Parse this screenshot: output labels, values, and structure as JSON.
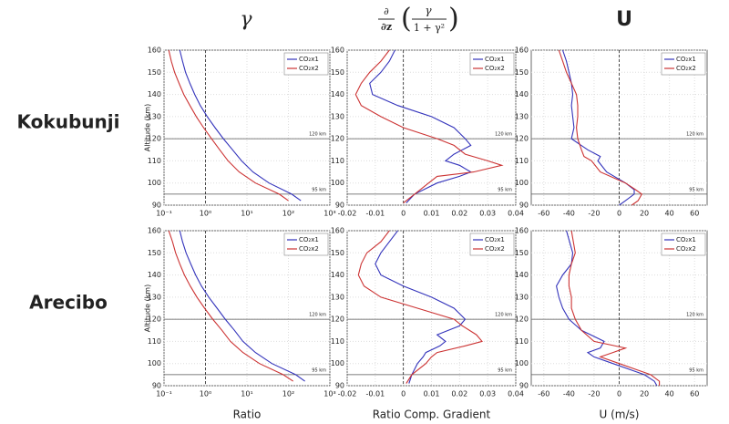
{
  "column_titles": {
    "gamma": "γ",
    "gradient": {
      "d_numerator": "∂",
      "d_denominator": "∂z",
      "numerator": "γ",
      "denominator": "1 + γ²"
    },
    "wind": "U"
  },
  "row_labels": [
    "Kokubunji",
    "Arecibo"
  ],
  "chart_data": [
    {
      "type": "line",
      "ylabel": "Altitude (km)",
      "xscale": "log",
      "xlim": [
        0.1,
        1000
      ],
      "xticks": [
        {
          "value": 0.1,
          "label": "10⁻¹"
        },
        {
          "value": 1,
          "label": "10⁰"
        },
        {
          "value": 10,
          "label": "10¹"
        },
        {
          "value": 100,
          "label": "10²"
        },
        {
          "value": 1000,
          "label": "10³"
        }
      ],
      "ylim": [
        90,
        160
      ],
      "yticks": [
        90,
        100,
        110,
        120,
        130,
        140,
        150,
        160
      ],
      "grid": true,
      "legend": "upper right",
      "zero_line": 1,
      "reference_lines": [
        {
          "value": 120,
          "label": "120 km"
        },
        {
          "value": 95,
          "label": "95 km"
        }
      ],
      "y": [
        92,
        95,
        100,
        105,
        110,
        115,
        120,
        125,
        130,
        135,
        140,
        145,
        150,
        155,
        160
      ],
      "series": [
        {
          "name": "CO₂x1",
          "color": "#3333bb",
          "values": [
            200,
            120,
            34,
            14,
            7.4,
            4.5,
            2.7,
            1.7,
            1.1,
            0.75,
            0.55,
            0.42,
            0.33,
            0.28,
            0.24
          ]
        },
        {
          "name": "CO₂x2",
          "color": "#cc3333",
          "values": [
            100,
            60,
            16,
            6.5,
            3.5,
            2.2,
            1.4,
            0.9,
            0.6,
            0.42,
            0.3,
            0.23,
            0.18,
            0.15,
            0.13
          ]
        }
      ]
    },
    {
      "type": "line",
      "xlim": [
        -0.02,
        0.04
      ],
      "xticks": [
        -0.02,
        -0.01,
        0,
        0.01,
        0.02,
        0.03,
        0.04
      ],
      "ylim": [
        90,
        160
      ],
      "yticks": [
        90,
        100,
        110,
        120,
        130,
        140,
        150,
        160
      ],
      "grid": true,
      "legend": "upper right",
      "zero_line": 0,
      "reference_lines": [
        {
          "value": 120,
          "label": "120 km"
        },
        {
          "value": 95,
          "label": "95 km"
        }
      ],
      "y": [
        91,
        95,
        100,
        103,
        105,
        108,
        110,
        113,
        117,
        120,
        125,
        130,
        135,
        140,
        145,
        150,
        155,
        160
      ],
      "series": [
        {
          "name": "CO₂x1",
          "color": "#3333bb",
          "values": [
            0.001,
            0.004,
            0.012,
            0.02,
            0.024,
            0.02,
            0.015,
            0.018,
            0.024,
            0.022,
            0.018,
            0.01,
            -0.002,
            -0.011,
            -0.012,
            -0.008,
            -0.005,
            -0.003
          ]
        },
        {
          "name": "CO₂x2",
          "color": "#cc3333",
          "values": [
            0,
            0.004,
            0.009,
            0.012,
            0.025,
            0.035,
            0.03,
            0.022,
            0.018,
            0.012,
            0,
            -0.008,
            -0.015,
            -0.017,
            -0.015,
            -0.012,
            -0.008,
            -0.005
          ]
        }
      ]
    },
    {
      "type": "line",
      "xlim": [
        -70,
        70
      ],
      "xticks": [
        -60,
        -40,
        -20,
        0,
        20,
        40,
        60
      ],
      "ylim": [
        90,
        160
      ],
      "yticks": [
        90,
        100,
        110,
        120,
        130,
        140,
        150,
        160
      ],
      "grid": true,
      "legend": "upper right",
      "zero_line": 0,
      "reference_lines": [
        {
          "value": 120,
          "label": "120 km"
        },
        {
          "value": 95,
          "label": "95 km"
        }
      ],
      "y": [
        90,
        92,
        95,
        97,
        100,
        105,
        110,
        112,
        115,
        120,
        125,
        130,
        135,
        140,
        145,
        150,
        155,
        160
      ],
      "series": [
        {
          "name": "CO₂x1",
          "color": "#3333bb",
          "values": [
            0,
            5,
            12,
            12,
            5,
            -10,
            -17,
            -15,
            -25,
            -38,
            -36,
            -37,
            -38,
            -37,
            -38,
            -40,
            -42,
            -45
          ]
        },
        {
          "name": "CO₂x2",
          "color": "#cc3333",
          "values": [
            10,
            15,
            18,
            13,
            5,
            -15,
            -22,
            -28,
            -30,
            -33,
            -34,
            -33,
            -33,
            -34,
            -38,
            -42,
            -45,
            -48
          ]
        }
      ]
    },
    {
      "type": "line",
      "xlabel": "Ratio",
      "ylabel": "Altitude (km)",
      "xscale": "log",
      "xlim": [
        0.1,
        1000
      ],
      "xticks": [
        {
          "value": 0.1,
          "label": "10⁻¹"
        },
        {
          "value": 1,
          "label": "10⁰"
        },
        {
          "value": 10,
          "label": "10¹"
        },
        {
          "value": 100,
          "label": "10²"
        },
        {
          "value": 1000,
          "label": "10³"
        }
      ],
      "ylim": [
        90,
        160
      ],
      "yticks": [
        90,
        100,
        110,
        120,
        130,
        140,
        150,
        160
      ],
      "grid": true,
      "legend": "upper right",
      "zero_line": 1,
      "reference_lines": [
        {
          "value": 120,
          "label": "120 km"
        },
        {
          "value": 95,
          "label": "95 km"
        }
      ],
      "y": [
        92,
        95,
        100,
        105,
        110,
        115,
        120,
        125,
        130,
        135,
        140,
        145,
        150,
        155,
        160
      ],
      "series": [
        {
          "name": "CO₂x1",
          "color": "#3333bb",
          "values": [
            250,
            150,
            40,
            16,
            8,
            5,
            3,
            1.9,
            1.2,
            0.8,
            0.58,
            0.44,
            0.34,
            0.28,
            0.24
          ]
        },
        {
          "name": "CO₂x2",
          "color": "#cc3333",
          "values": [
            130,
            75,
            20,
            8,
            4,
            2.5,
            1.5,
            0.95,
            0.62,
            0.43,
            0.31,
            0.24,
            0.19,
            0.16,
            0.13
          ]
        }
      ]
    },
    {
      "type": "line",
      "xlabel": "Ratio Comp. Gradient",
      "xlim": [
        -0.02,
        0.04
      ],
      "xticks": [
        -0.02,
        -0.01,
        0,
        0.01,
        0.02,
        0.03,
        0.04
      ],
      "ylim": [
        90,
        160
      ],
      "yticks": [
        90,
        100,
        110,
        120,
        130,
        140,
        150,
        160
      ],
      "grid": true,
      "legend": "upper right",
      "zero_line": 0,
      "reference_lines": [
        {
          "value": 120,
          "label": "120 km"
        },
        {
          "value": 95,
          "label": "95 km"
        }
      ],
      "y": [
        91,
        95,
        100,
        103,
        105,
        108,
        110,
        113,
        117,
        120,
        125,
        130,
        135,
        140,
        145,
        150,
        155,
        160
      ],
      "series": [
        {
          "name": "CO₂x1",
          "color": "#3333bb",
          "values": [
            0.002,
            0.003,
            0.005,
            0.007,
            0.008,
            0.013,
            0.015,
            0.012,
            0.02,
            0.022,
            0.018,
            0.01,
            0,
            -0.008,
            -0.01,
            -0.008,
            -0.005,
            -0.002
          ]
        },
        {
          "name": "CO₂x2",
          "color": "#cc3333",
          "values": [
            0.001,
            0.003,
            0.008,
            0.01,
            0.012,
            0.022,
            0.028,
            0.026,
            0.021,
            0.018,
            0.005,
            -0.008,
            -0.014,
            -0.016,
            -0.015,
            -0.013,
            -0.008,
            -0.005
          ]
        }
      ]
    },
    {
      "type": "line",
      "xlabel": "U (m/s)",
      "xlim": [
        -70,
        70
      ],
      "xticks": [
        -60,
        -40,
        -20,
        0,
        20,
        40,
        60
      ],
      "ylim": [
        90,
        160
      ],
      "yticks": [
        90,
        100,
        110,
        120,
        130,
        140,
        150,
        160
      ],
      "grid": true,
      "legend": "upper right",
      "zero_line": 0,
      "reference_lines": [
        {
          "value": 120,
          "label": "120 km"
        },
        {
          "value": 95,
          "label": "95 km"
        }
      ],
      "y": [
        90,
        92,
        95,
        97,
        100,
        103,
        105,
        107,
        110,
        115,
        120,
        125,
        130,
        135,
        140,
        145,
        150,
        160
      ],
      "series": [
        {
          "name": "CO₂x1",
          "color": "#3333bb",
          "values": [
            30,
            28,
            20,
            10,
            -5,
            -20,
            -25,
            -15,
            -12,
            -30,
            -40,
            -45,
            -48,
            -50,
            -45,
            -38,
            -37,
            -42
          ]
        },
        {
          "name": "CO₂x2",
          "color": "#cc3333",
          "values": [
            32,
            32,
            25,
            15,
            0,
            -15,
            -5,
            5,
            -20,
            -30,
            -35,
            -38,
            -38,
            -40,
            -40,
            -38,
            -35,
            -38
          ]
        }
      ]
    }
  ]
}
